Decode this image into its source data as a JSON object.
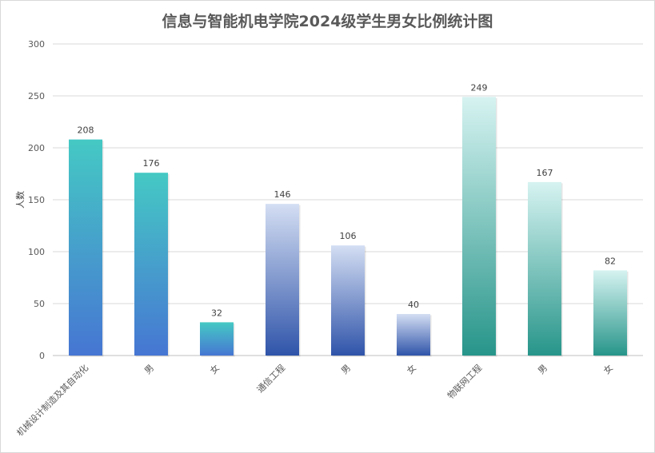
{
  "chart_data": {
    "type": "bar",
    "title": "信息与智能机电学院2024级学生男女比例统计图",
    "xlabel": "",
    "ylabel": "人数",
    "ylim": [
      0,
      300
    ],
    "yticks": [
      0,
      50,
      100,
      150,
      200,
      250,
      300
    ],
    "grid": true,
    "legend": "none",
    "categories": [
      "机械设计制造及其自动化",
      "男",
      "女",
      "通信工程",
      "男",
      "女",
      "物联网工程",
      "男",
      "女"
    ],
    "values": [
      208,
      176,
      32,
      146,
      106,
      40,
      249,
      167,
      82
    ],
    "bar_colors": [
      {
        "top": "#45c9c4",
        "bottom": "#4676d3"
      },
      {
        "top": "#45c9c4",
        "bottom": "#4676d3"
      },
      {
        "top": "#45c9c4",
        "bottom": "#4676d3"
      },
      {
        "top": "#d4def3",
        "bottom": "#2f54a9"
      },
      {
        "top": "#d4def3",
        "bottom": "#2f54a9"
      },
      {
        "top": "#d4def3",
        "bottom": "#2f54a9"
      },
      {
        "top": "#d6f3f1",
        "bottom": "#27958a"
      },
      {
        "top": "#d6f3f1",
        "bottom": "#27958a"
      },
      {
        "top": "#d6f3f1",
        "bottom": "#27958a"
      }
    ]
  }
}
